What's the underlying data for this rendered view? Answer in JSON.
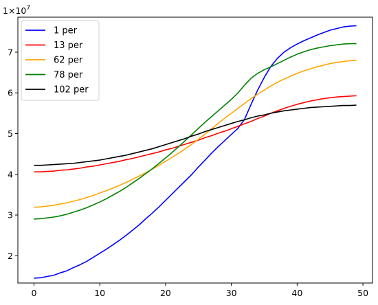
{
  "chart_data": {
    "type": "line",
    "offset_label": "1×10",
    "offset_exponent": "7",
    "x": [
      0,
      1,
      2,
      3,
      4,
      5,
      6,
      7,
      8,
      9,
      10,
      11,
      12,
      13,
      14,
      15,
      16,
      17,
      18,
      19,
      20,
      21,
      22,
      23,
      24,
      25,
      26,
      27,
      28,
      29,
      30,
      31,
      32,
      33,
      34,
      35,
      36,
      37,
      38,
      39,
      40,
      41,
      42,
      43,
      44,
      45,
      46,
      47,
      48,
      49
    ],
    "xlim": [
      -2.45,
      51.45
    ],
    "ylim": [
      1.33,
      7.86
    ],
    "xticks": [
      0,
      10,
      20,
      30,
      40,
      50
    ],
    "yticks": [
      2,
      3,
      4,
      5,
      6,
      7
    ],
    "grid": false,
    "legend_position": "top-left",
    "series": [
      {
        "name": "1 per",
        "color": "#0000ff",
        "values": [
          1.45,
          1.46,
          1.49,
          1.52,
          1.58,
          1.63,
          1.71,
          1.78,
          1.86,
          1.96,
          2.06,
          2.16,
          2.27,
          2.38,
          2.5,
          2.63,
          2.76,
          2.91,
          3.05,
          3.2,
          3.36,
          3.52,
          3.68,
          3.84,
          4.0,
          4.18,
          4.35,
          4.52,
          4.68,
          4.83,
          4.98,
          5.13,
          5.35,
          5.72,
          6.07,
          6.38,
          6.65,
          6.85,
          7.0,
          7.11,
          7.2,
          7.28,
          7.35,
          7.42,
          7.48,
          7.54,
          7.58,
          7.62,
          7.64,
          7.65
        ]
      },
      {
        "name": "13 per",
        "color": "#ff0000",
        "values": [
          4.06,
          4.06,
          4.07,
          4.08,
          4.1,
          4.11,
          4.13,
          4.15,
          4.18,
          4.2,
          4.23,
          4.26,
          4.29,
          4.32,
          4.36,
          4.39,
          4.43,
          4.47,
          4.51,
          4.55,
          4.6,
          4.64,
          4.69,
          4.74,
          4.79,
          4.84,
          4.9,
          4.95,
          5.01,
          5.06,
          5.12,
          5.18,
          5.24,
          5.3,
          5.37,
          5.43,
          5.5,
          5.56,
          5.62,
          5.67,
          5.72,
          5.76,
          5.8,
          5.83,
          5.86,
          5.88,
          5.9,
          5.91,
          5.92,
          5.93
        ]
      },
      {
        "name": "62 per",
        "color": "#ffa500",
        "values": [
          3.19,
          3.2,
          3.22,
          3.24,
          3.27,
          3.3,
          3.34,
          3.38,
          3.43,
          3.48,
          3.54,
          3.6,
          3.66,
          3.73,
          3.8,
          3.88,
          3.96,
          4.04,
          4.13,
          4.22,
          4.32,
          4.42,
          4.52,
          4.63,
          4.74,
          4.86,
          4.99,
          5.12,
          5.25,
          5.38,
          5.5,
          5.62,
          5.74,
          5.86,
          5.97,
          6.07,
          6.17,
          6.26,
          6.34,
          6.41,
          6.48,
          6.54,
          6.59,
          6.64,
          6.68,
          6.72,
          6.75,
          6.77,
          6.79,
          6.8
        ]
      },
      {
        "name": "78 per",
        "color": "#008000",
        "values": [
          2.9,
          2.91,
          2.93,
          2.95,
          2.98,
          3.02,
          3.07,
          3.12,
          3.18,
          3.25,
          3.32,
          3.4,
          3.49,
          3.58,
          3.68,
          3.79,
          3.9,
          4.02,
          4.14,
          4.27,
          4.4,
          4.54,
          4.68,
          4.83,
          4.98,
          5.13,
          5.28,
          5.42,
          5.56,
          5.7,
          5.84,
          6.0,
          6.19,
          6.36,
          6.48,
          6.57,
          6.64,
          6.72,
          6.8,
          6.88,
          6.95,
          7.01,
          7.06,
          7.1,
          7.13,
          7.16,
          7.18,
          7.2,
          7.21,
          7.21
        ]
      },
      {
        "name": "102 per",
        "color": "#000000",
        "values": [
          4.22,
          4.22,
          4.23,
          4.24,
          4.25,
          4.26,
          4.27,
          4.29,
          4.31,
          4.33,
          4.35,
          4.38,
          4.41,
          4.44,
          4.47,
          4.51,
          4.55,
          4.59,
          4.63,
          4.68,
          4.73,
          4.78,
          4.83,
          4.88,
          4.94,
          4.99,
          5.05,
          5.1,
          5.15,
          5.2,
          5.25,
          5.3,
          5.34,
          5.39,
          5.43,
          5.46,
          5.5,
          5.53,
          5.56,
          5.58,
          5.6,
          5.62,
          5.64,
          5.65,
          5.66,
          5.67,
          5.68,
          5.69,
          5.69,
          5.7
        ]
      }
    ]
  }
}
